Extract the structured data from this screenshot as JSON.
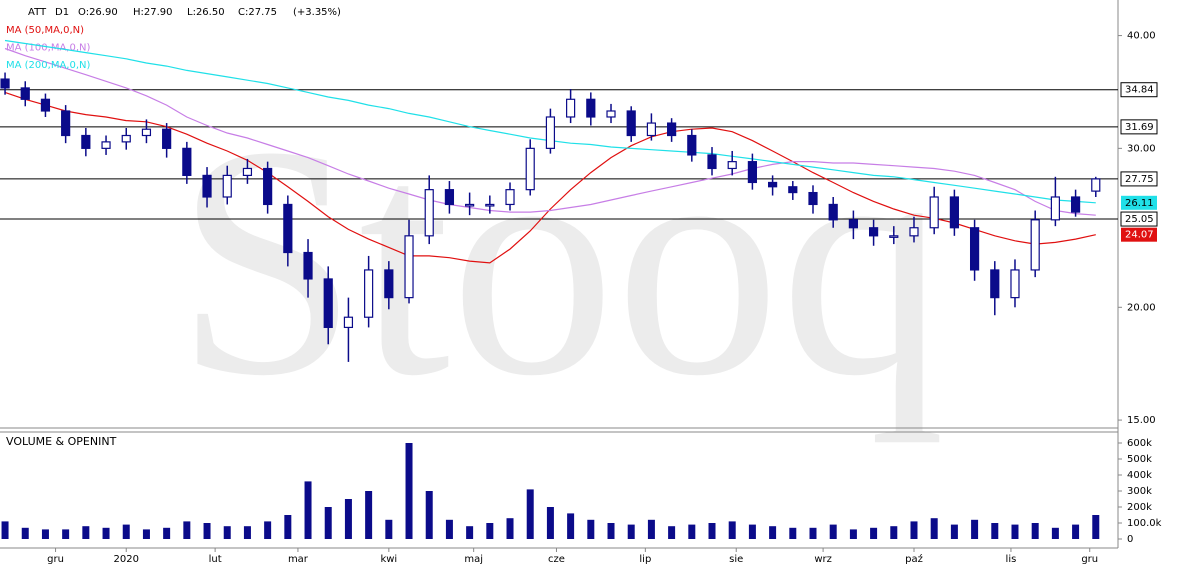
{
  "header": {
    "symbol": "ATT",
    "interval": "D1",
    "open": "O:26.90",
    "high": "H:27.90",
    "low": "L:26.50",
    "close": "C:27.75",
    "change": "(+3.35%)"
  },
  "watermark": "Stooq",
  "chart_data": [
    {
      "type": "candlestick",
      "color": "#0b0b8a",
      "log_scale": true,
      "legend": "top-left",
      "xlim": [
        -0.25,
        55.1
      ],
      "ylim": [
        14.7,
        43.8
      ],
      "yticks": [
        {
          "value": 15,
          "label": "15.00"
        },
        {
          "value": 20,
          "label": "20.00"
        },
        {
          "value": 30,
          "label": "30.00"
        },
        {
          "value": 40,
          "label": "40.00"
        }
      ],
      "levels": [
        34.84,
        31.69,
        27.75,
        25.05
      ],
      "level_color": "#000000",
      "x": [
        0,
        1,
        2,
        3,
        4,
        5,
        6,
        7,
        8,
        9,
        10,
        11,
        12,
        13,
        14,
        15,
        16,
        17,
        18,
        19,
        20,
        21,
        22,
        23,
        24,
        25,
        26,
        27,
        28,
        29,
        30,
        31,
        32,
        33,
        34,
        35,
        36,
        37,
        38,
        39,
        40,
        41,
        42,
        43,
        44,
        45,
        46,
        47,
        48,
        49,
        50,
        51,
        52,
        53,
        54
      ],
      "open": [
        35.8,
        35,
        34,
        33,
        31,
        30,
        30.5,
        31,
        31.5,
        30,
        28,
        26.5,
        28,
        28.5,
        26,
        23,
        21.5,
        19,
        19.5,
        22,
        20.5,
        24,
        27,
        26,
        26,
        26,
        27,
        30,
        32.5,
        34,
        32.5,
        33,
        31,
        32,
        31,
        29.5,
        28.5,
        29,
        27.5,
        27.2,
        26.8,
        26,
        25,
        24.5,
        24,
        24,
        24.5,
        26.5,
        24.5,
        22,
        20.5,
        22,
        25,
        26.5,
        26.9
      ],
      "high": [
        36.4,
        35.6,
        34.5,
        33.5,
        31.6,
        31,
        31.6,
        32.3,
        32,
        30.5,
        28.6,
        28.7,
        29.2,
        29,
        26.6,
        23.8,
        22.2,
        20.5,
        22.8,
        22.5,
        25,
        28,
        27.6,
        26.8,
        26.6,
        27.5,
        30.7,
        33.2,
        34.9,
        34.6,
        33.6,
        33.4,
        32.8,
        32.4,
        31.5,
        30.1,
        29.8,
        29.6,
        28,
        27.6,
        27.3,
        26.5,
        25.6,
        25,
        24.6,
        25.2,
        27.2,
        27,
        25,
        22.5,
        22.6,
        25.6,
        27.9,
        27,
        27.9
      ],
      "low": [
        34.4,
        33.4,
        32.5,
        30.4,
        29.4,
        29.5,
        29.9,
        30.4,
        29.3,
        27.4,
        25.8,
        26,
        27.4,
        25.4,
        22.2,
        20.5,
        18.2,
        17.4,
        19,
        19.9,
        20.2,
        23.5,
        25.4,
        25.3,
        25.4,
        25.6,
        26.6,
        29.6,
        32,
        31.8,
        32,
        30.5,
        30.6,
        30.5,
        29,
        28,
        28,
        27,
        26.6,
        26.3,
        25.4,
        24.5,
        23.8,
        23.4,
        23.5,
        23.6,
        24.1,
        24,
        21.4,
        19.6,
        20,
        21.6,
        24.6,
        25.2,
        26.5
      ],
      "close": [
        35,
        34,
        33,
        31,
        30,
        30.5,
        31,
        31.5,
        30,
        28,
        26.5,
        28,
        28.5,
        26,
        23,
        21.5,
        19,
        19.5,
        22,
        20.5,
        24,
        27,
        26,
        26,
        26,
        27,
        30,
        32.5,
        34,
        32.5,
        33,
        31,
        32,
        31,
        29.5,
        28.5,
        29,
        27.5,
        27.2,
        26.8,
        26,
        25,
        24.5,
        24,
        24,
        24.5,
        26.5,
        24.5,
        22,
        20.5,
        22,
        25,
        26.5,
        25.5,
        27.75
      ],
      "series": [
        {
          "name": "MA (50,MA,0,N)",
          "color": "#e01010",
          "show_last": true,
          "values": [
            34.6,
            34,
            33.5,
            33,
            32.7,
            32.5,
            32.2,
            32.1,
            31.7,
            31.1,
            30.4,
            29.8,
            29.1,
            28.2,
            27.2,
            26.2,
            25.2,
            24.4,
            23.8,
            23.3,
            22.8,
            22.8,
            22.7,
            22.5,
            22.4,
            23.2,
            24.3,
            25.7,
            27,
            28.2,
            29.3,
            30.2,
            30.9,
            31.3,
            31.5,
            31.6,
            31.3,
            30.6,
            29.8,
            29,
            28.2,
            27.5,
            26.8,
            26.2,
            25.7,
            25.3,
            25.1,
            24.8,
            24.4,
            24,
            23.7,
            23.5,
            23.6,
            23.8,
            24.07
          ]
        },
        {
          "name": "MA (100,MA,0,N)",
          "color": "#c77ee6",
          "show_last": false,
          "values": [
            38.7,
            38,
            37.4,
            36.8,
            36.2,
            35.6,
            35,
            34.3,
            33.5,
            32.5,
            31.8,
            31.2,
            30.8,
            30.3,
            29.8,
            29.3,
            28.7,
            28.1,
            27.6,
            27.1,
            26.7,
            26.3,
            26,
            25.8,
            25.6,
            25.5,
            25.5,
            25.6,
            25.8,
            26,
            26.3,
            26.6,
            26.9,
            27.2,
            27.5,
            27.8,
            28.1,
            28.5,
            28.8,
            29,
            29,
            28.9,
            28.9,
            28.8,
            28.7,
            28.6,
            28.5,
            28.3,
            28,
            27.5,
            27,
            26.2,
            25.6,
            25.4,
            25.3
          ]
        },
        {
          "name": "MA (200,MA,0,N)",
          "color": "#20e0e8",
          "show_last": true,
          "values": [
            39.5,
            39.2,
            38.9,
            38.6,
            38.3,
            38,
            37.7,
            37.3,
            37,
            36.6,
            36.3,
            36,
            35.7,
            35.4,
            35,
            34.6,
            34.2,
            33.9,
            33.5,
            33.2,
            32.8,
            32.5,
            32.1,
            31.7,
            31.4,
            31.1,
            30.8,
            30.6,
            30.4,
            30.3,
            30.1,
            30,
            29.9,
            29.8,
            29.7,
            29.6,
            29.4,
            29.2,
            29,
            28.8,
            28.6,
            28.4,
            28.2,
            28,
            27.9,
            27.7,
            27.5,
            27.3,
            27.1,
            26.9,
            26.7,
            26.5,
            26.3,
            26.2,
            26.11
          ]
        }
      ]
    },
    {
      "type": "bar",
      "title": "VOLUME & OPENINT",
      "color": "#0b0b8a",
      "xlim": [
        -0.25,
        55.1
      ],
      "ylim": [
        0,
        650000
      ],
      "yticks": [
        0,
        {
          "value": 100000,
          "label": "100.0k"
        },
        {
          "value": 200000,
          "label": "200k"
        },
        {
          "value": 300000,
          "label": "300k"
        },
        {
          "value": 400000,
          "label": "400k"
        },
        {
          "value": 500000,
          "label": "500k"
        },
        {
          "value": 600000,
          "label": "600k"
        }
      ],
      "xticks": [
        {
          "value": 2.5,
          "label": "gru"
        },
        {
          "value": 6,
          "label": "2020"
        },
        {
          "value": 10.4,
          "label": "lut"
        },
        {
          "value": 14.5,
          "label": "mar"
        },
        {
          "value": 19,
          "label": "kwi"
        },
        {
          "value": 23.2,
          "label": "maj"
        },
        {
          "value": 27.3,
          "label": "cze"
        },
        {
          "value": 31.7,
          "label": "lip"
        },
        {
          "value": 36.2,
          "label": "sie"
        },
        {
          "value": 40.5,
          "label": "wrz"
        },
        {
          "value": 45,
          "label": "paź"
        },
        {
          "value": 49.8,
          "label": "lis"
        },
        {
          "value": 53.7,
          "label": "gru"
        }
      ],
      "x": [
        0,
        1,
        2,
        3,
        4,
        5,
        6,
        7,
        8,
        9,
        10,
        11,
        12,
        13,
        14,
        15,
        16,
        17,
        18,
        19,
        20,
        21,
        22,
        23,
        24,
        25,
        26,
        27,
        28,
        29,
        30,
        31,
        32,
        33,
        34,
        35,
        36,
        37,
        38,
        39,
        40,
        41,
        42,
        43,
        44,
        45,
        46,
        47,
        48,
        49,
        50,
        51,
        52,
        53,
        54
      ],
      "values": [
        110000,
        70000,
        60000,
        60000,
        80000,
        70000,
        90000,
        60000,
        70000,
        110000,
        100000,
        80000,
        80000,
        110000,
        150000,
        360000,
        200000,
        250000,
        300000,
        120000,
        600000,
        300000,
        120000,
        80000,
        100000,
        130000,
        310000,
        200000,
        160000,
        120000,
        100000,
        90000,
        120000,
        80000,
        90000,
        100000,
        110000,
        90000,
        80000,
        70000,
        70000,
        90000,
        60000,
        70000,
        80000,
        110000,
        130000,
        90000,
        120000,
        100000,
        90000,
        100000,
        70000,
        90000,
        150000
      ]
    }
  ]
}
